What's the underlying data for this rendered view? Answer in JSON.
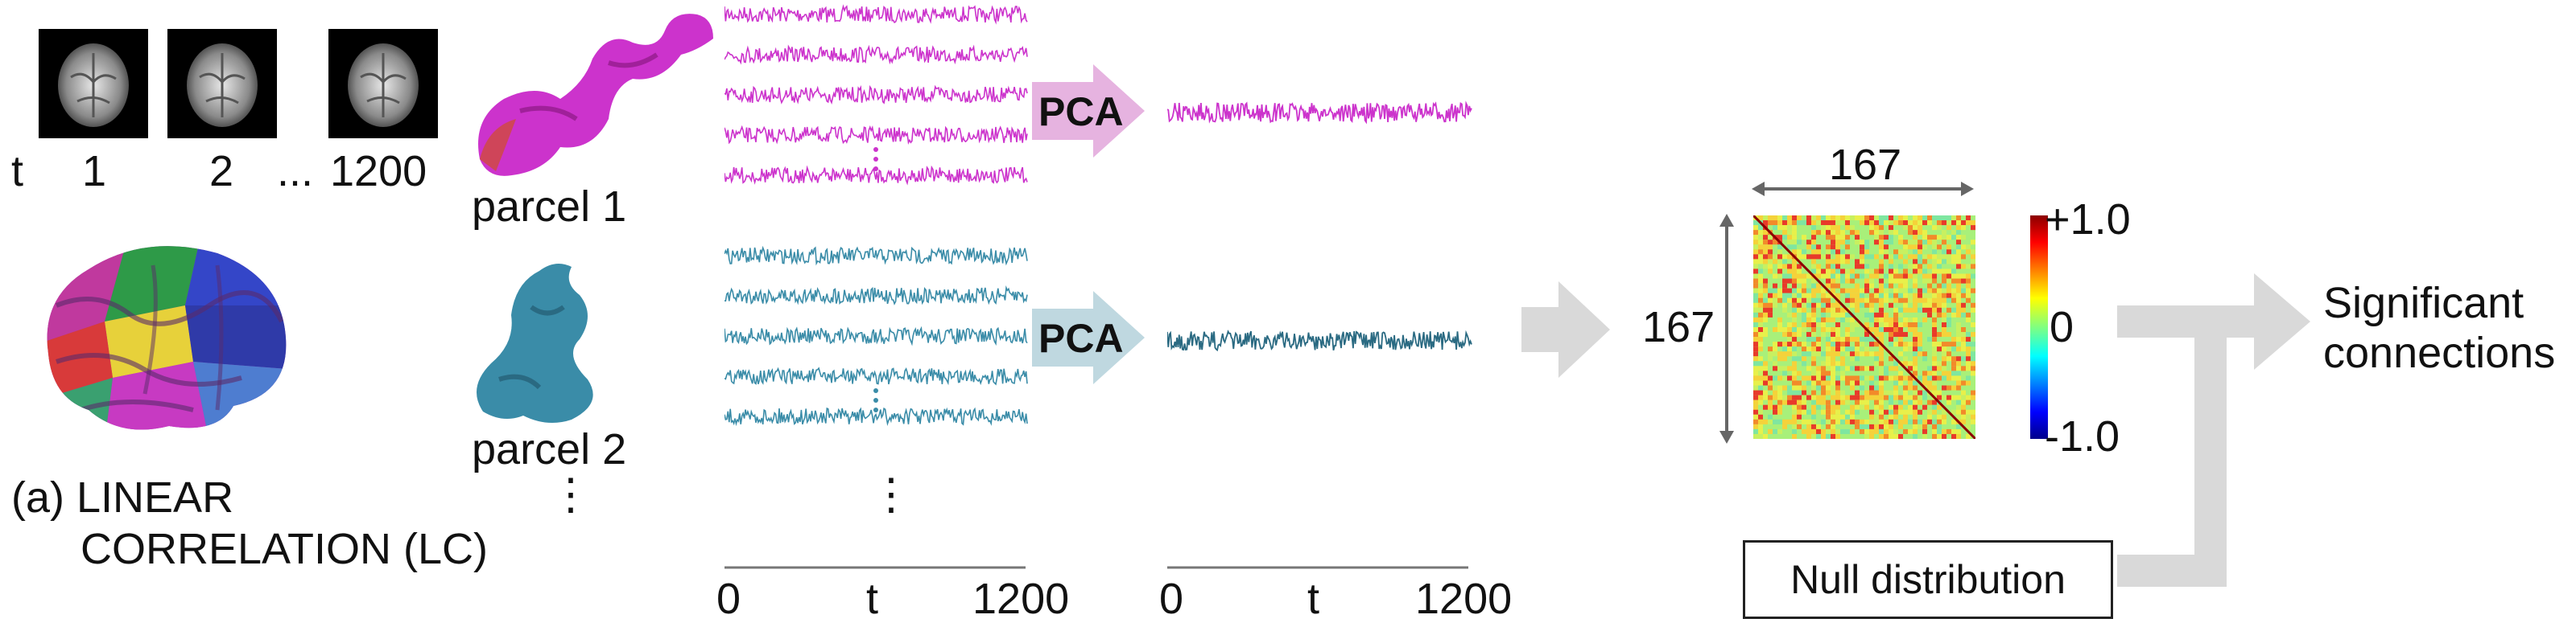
{
  "time": {
    "t_label": "t",
    "frame_labels": [
      "1",
      "2",
      "1200"
    ],
    "ellipsis": "..."
  },
  "parcels": [
    {
      "label": "parcel 1",
      "color": "#cc33cc"
    },
    {
      "label": "parcel 2",
      "color": "#3a8ca8"
    }
  ],
  "parcel_ellipsis": "⋮",
  "pca_label": "PCA",
  "pca_arrow_colors": [
    "#e6b3e0",
    "#bfd8e0"
  ],
  "section_label_line1": "(a) LINEAR",
  "section_label_line2": "CORRELATION (LC)",
  "axis1": {
    "start": "0",
    "mid": "t",
    "end": "1200"
  },
  "axis2": {
    "start": "0",
    "mid": "t",
    "end": "1200"
  },
  "matrix": {
    "size_top": "167",
    "size_left": "167",
    "colorbar_max": "+1.0",
    "colorbar_mid": "0",
    "colorbar_min": "-1.0"
  },
  "output_label_line1": "Significant",
  "output_label_line2": "connections",
  "null_distribution": "Null distribution"
}
